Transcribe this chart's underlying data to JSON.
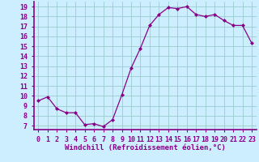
{
  "x": [
    0,
    1,
    2,
    3,
    4,
    5,
    6,
    7,
    8,
    9,
    10,
    11,
    12,
    13,
    14,
    15,
    16,
    17,
    18,
    19,
    20,
    21,
    22,
    23
  ],
  "y": [
    9.5,
    9.9,
    8.7,
    8.3,
    8.3,
    7.1,
    7.2,
    6.9,
    7.6,
    10.1,
    12.8,
    14.8,
    17.1,
    18.2,
    18.9,
    18.8,
    19.0,
    18.2,
    18.0,
    18.2,
    17.6,
    17.1,
    17.1,
    15.3
  ],
  "line_color": "#880088",
  "marker": "D",
  "marker_size": 2.0,
  "linewidth": 0.9,
  "bg_color": "#cceeff",
  "grid_color": "#99cccc",
  "xlabel": "Windchill (Refroidissement éolien,°C)",
  "xlabel_color": "#880088",
  "xlabel_fontsize": 6.5,
  "ylabel_ticks": [
    7,
    8,
    9,
    10,
    11,
    12,
    13,
    14,
    15,
    16,
    17,
    18,
    19
  ],
  "xtick_labels": [
    "0",
    "1",
    "2",
    "3",
    "4",
    "5",
    "6",
    "7",
    "8",
    "9",
    "10",
    "11",
    "12",
    "13",
    "14",
    "15",
    "16",
    "17",
    "18",
    "19",
    "20",
    "21",
    "22",
    "23"
  ],
  "ylim": [
    6.6,
    19.5
  ],
  "xlim": [
    -0.5,
    23.5
  ],
  "tick_color": "#880088",
  "tick_fontsize": 6.0,
  "border_color": "#880088",
  "border_lw": 1.2
}
